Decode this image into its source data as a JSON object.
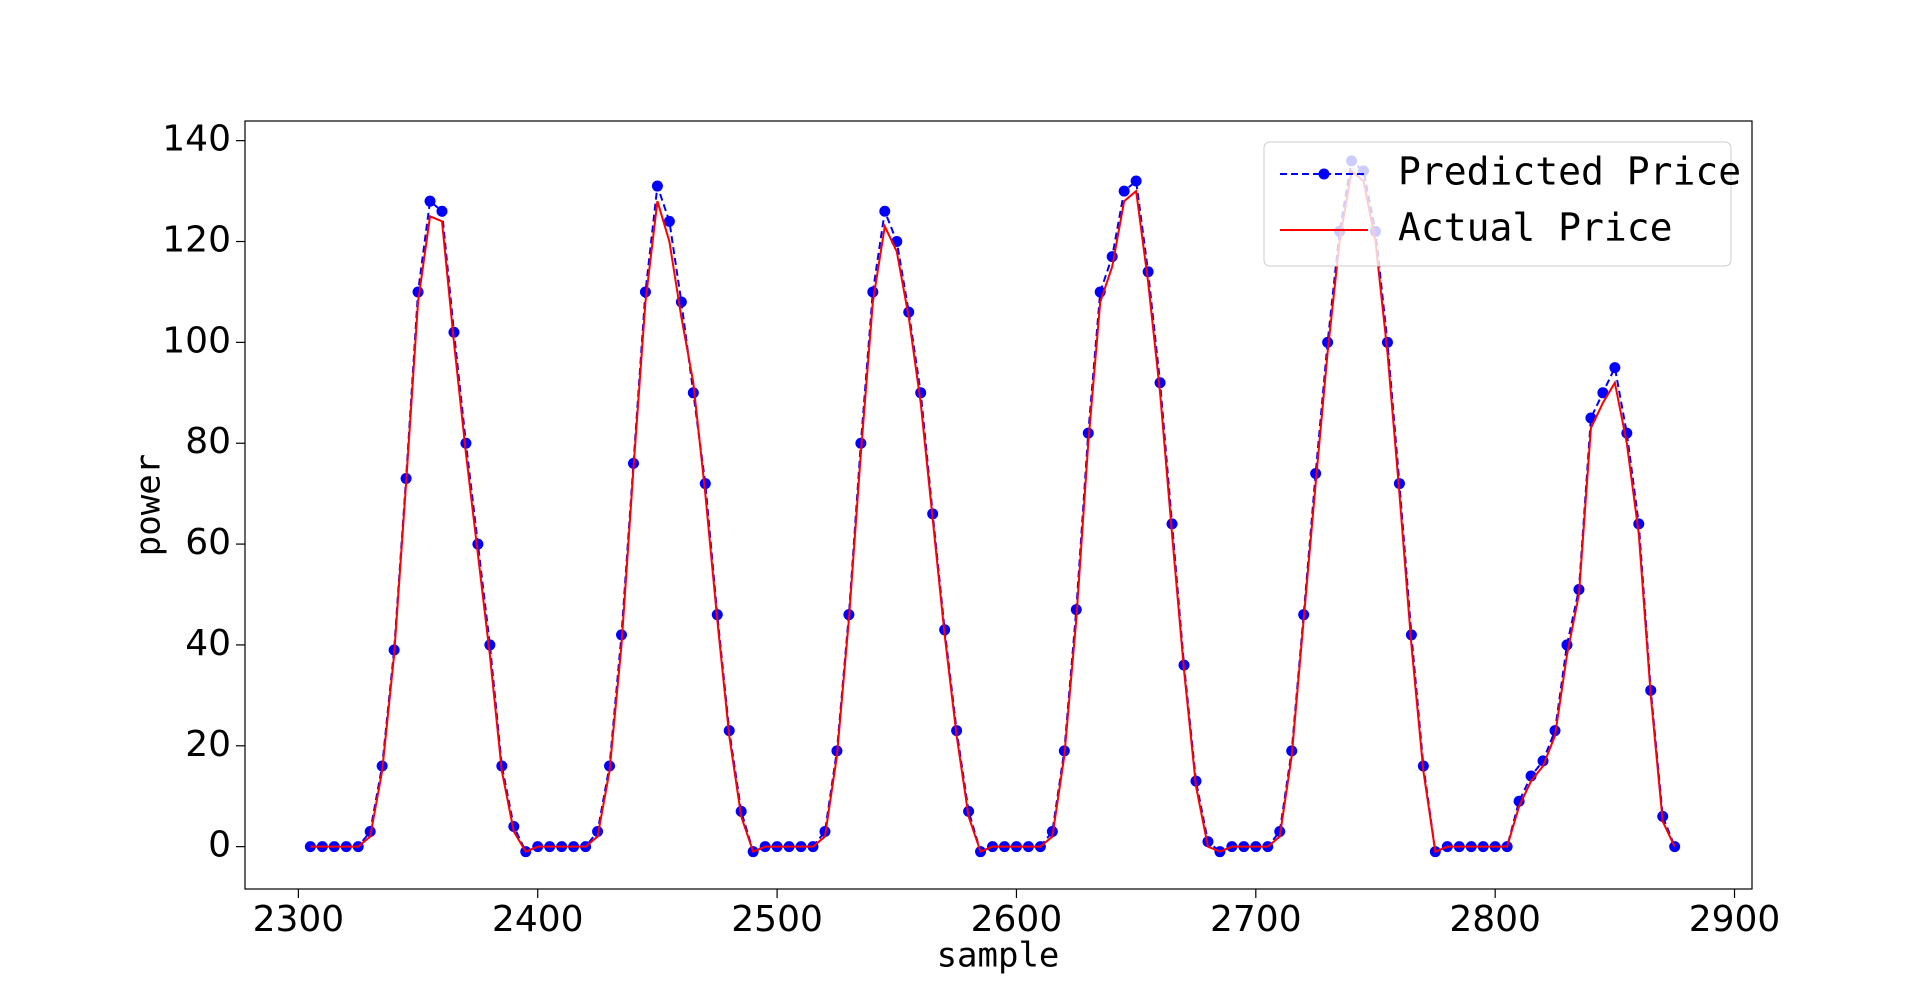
{
  "chart_data": {
    "type": "line",
    "x_label": "sample",
    "y_label": "power",
    "x": [
      2305,
      2310,
      2315,
      2320,
      2325,
      2330,
      2335,
      2340,
      2345,
      2350,
      2355,
      2360,
      2365,
      2370,
      2375,
      2380,
      2385,
      2390,
      2395,
      2400,
      2405,
      2410,
      2415,
      2420,
      2425,
      2430,
      2435,
      2440,
      2445,
      2450,
      2455,
      2460,
      2465,
      2470,
      2475,
      2480,
      2485,
      2490,
      2495,
      2500,
      2505,
      2510,
      2515,
      2520,
      2525,
      2530,
      2535,
      2540,
      2545,
      2550,
      2555,
      2560,
      2565,
      2570,
      2575,
      2580,
      2585,
      2590,
      2595,
      2600,
      2605,
      2610,
      2615,
      2620,
      2625,
      2630,
      2635,
      2640,
      2645,
      2650,
      2655,
      2660,
      2665,
      2670,
      2675,
      2680,
      2685,
      2690,
      2695,
      2700,
      2705,
      2710,
      2715,
      2720,
      2725,
      2730,
      2735,
      2740,
      2745,
      2750,
      2755,
      2760,
      2765,
      2770,
      2775,
      2780,
      2785,
      2790,
      2795,
      2800,
      2805,
      2810,
      2815,
      2820,
      2825,
      2830,
      2835,
      2840,
      2845,
      2850,
      2855,
      2860,
      2865,
      2870,
      2875
    ],
    "series": [
      {
        "name": "Predicted Price",
        "color": "#0000ff",
        "dashed": true,
        "marker": true,
        "values": [
          0,
          0,
          0,
          0,
          0,
          3,
          16,
          39,
          73,
          110,
          128,
          126,
          102,
          80,
          60,
          40,
          16,
          4,
          -1,
          0,
          0,
          0,
          0,
          0,
          3,
          16,
          42,
          76,
          110,
          131,
          124,
          108,
          90,
          72,
          46,
          23,
          7,
          -1,
          0,
          0,
          0,
          0,
          0,
          3,
          19,
          46,
          80,
          110,
          126,
          120,
          106,
          90,
          66,
          43,
          23,
          7,
          -1,
          0,
          0,
          0,
          0,
          0,
          3,
          19,
          47,
          82,
          110,
          117,
          130,
          132,
          114,
          92,
          64,
          36,
          13,
          1,
          -1,
          0,
          0,
          0,
          0,
          3,
          19,
          46,
          74,
          100,
          122,
          136,
          134,
          122,
          100,
          72,
          42,
          16,
          -1,
          0,
          0,
          0,
          0,
          0,
          0,
          9,
          14,
          17,
          23,
          40,
          51,
          85,
          90,
          95,
          82,
          64,
          31,
          6,
          0
        ]
      },
      {
        "name": "Actual Price",
        "color": "#ff0000",
        "dashed": false,
        "marker": false,
        "values": [
          0,
          0,
          0,
          0,
          0,
          2,
          15,
          38,
          72,
          108,
          125,
          124,
          100,
          78,
          58,
          38,
          15,
          3,
          -1,
          0,
          0,
          0,
          0,
          0,
          2,
          15,
          40,
          75,
          108,
          128,
          120,
          105,
          92,
          70,
          45,
          22,
          6,
          -1,
          0,
          0,
          0,
          0,
          0,
          2,
          18,
          45,
          78,
          108,
          123,
          118,
          105,
          88,
          65,
          42,
          22,
          6,
          -1,
          0,
          0,
          0,
          0,
          0,
          2,
          18,
          45,
          80,
          108,
          115,
          128,
          130,
          112,
          90,
          62,
          35,
          12,
          0,
          -1,
          0,
          0,
          0,
          0,
          2,
          18,
          45,
          72,
          98,
          120,
          134,
          132,
          120,
          98,
          70,
          40,
          15,
          -1,
          0,
          0,
          0,
          0,
          0,
          0,
          8,
          13,
          16,
          22,
          38,
          50,
          83,
          88,
          92,
          80,
          62,
          30,
          5,
          0
        ]
      }
    ],
    "xlim": [
      2277.7,
      2907.3
    ],
    "xticks": [
      2300,
      2400,
      2500,
      2600,
      2700,
      2800,
      2900
    ],
    "ylim": [
      -8.4,
      143.9
    ],
    "yticks": [
      0,
      20,
      40,
      60,
      80,
      100,
      120,
      140
    ],
    "grid": false,
    "legend": "upper right"
  }
}
